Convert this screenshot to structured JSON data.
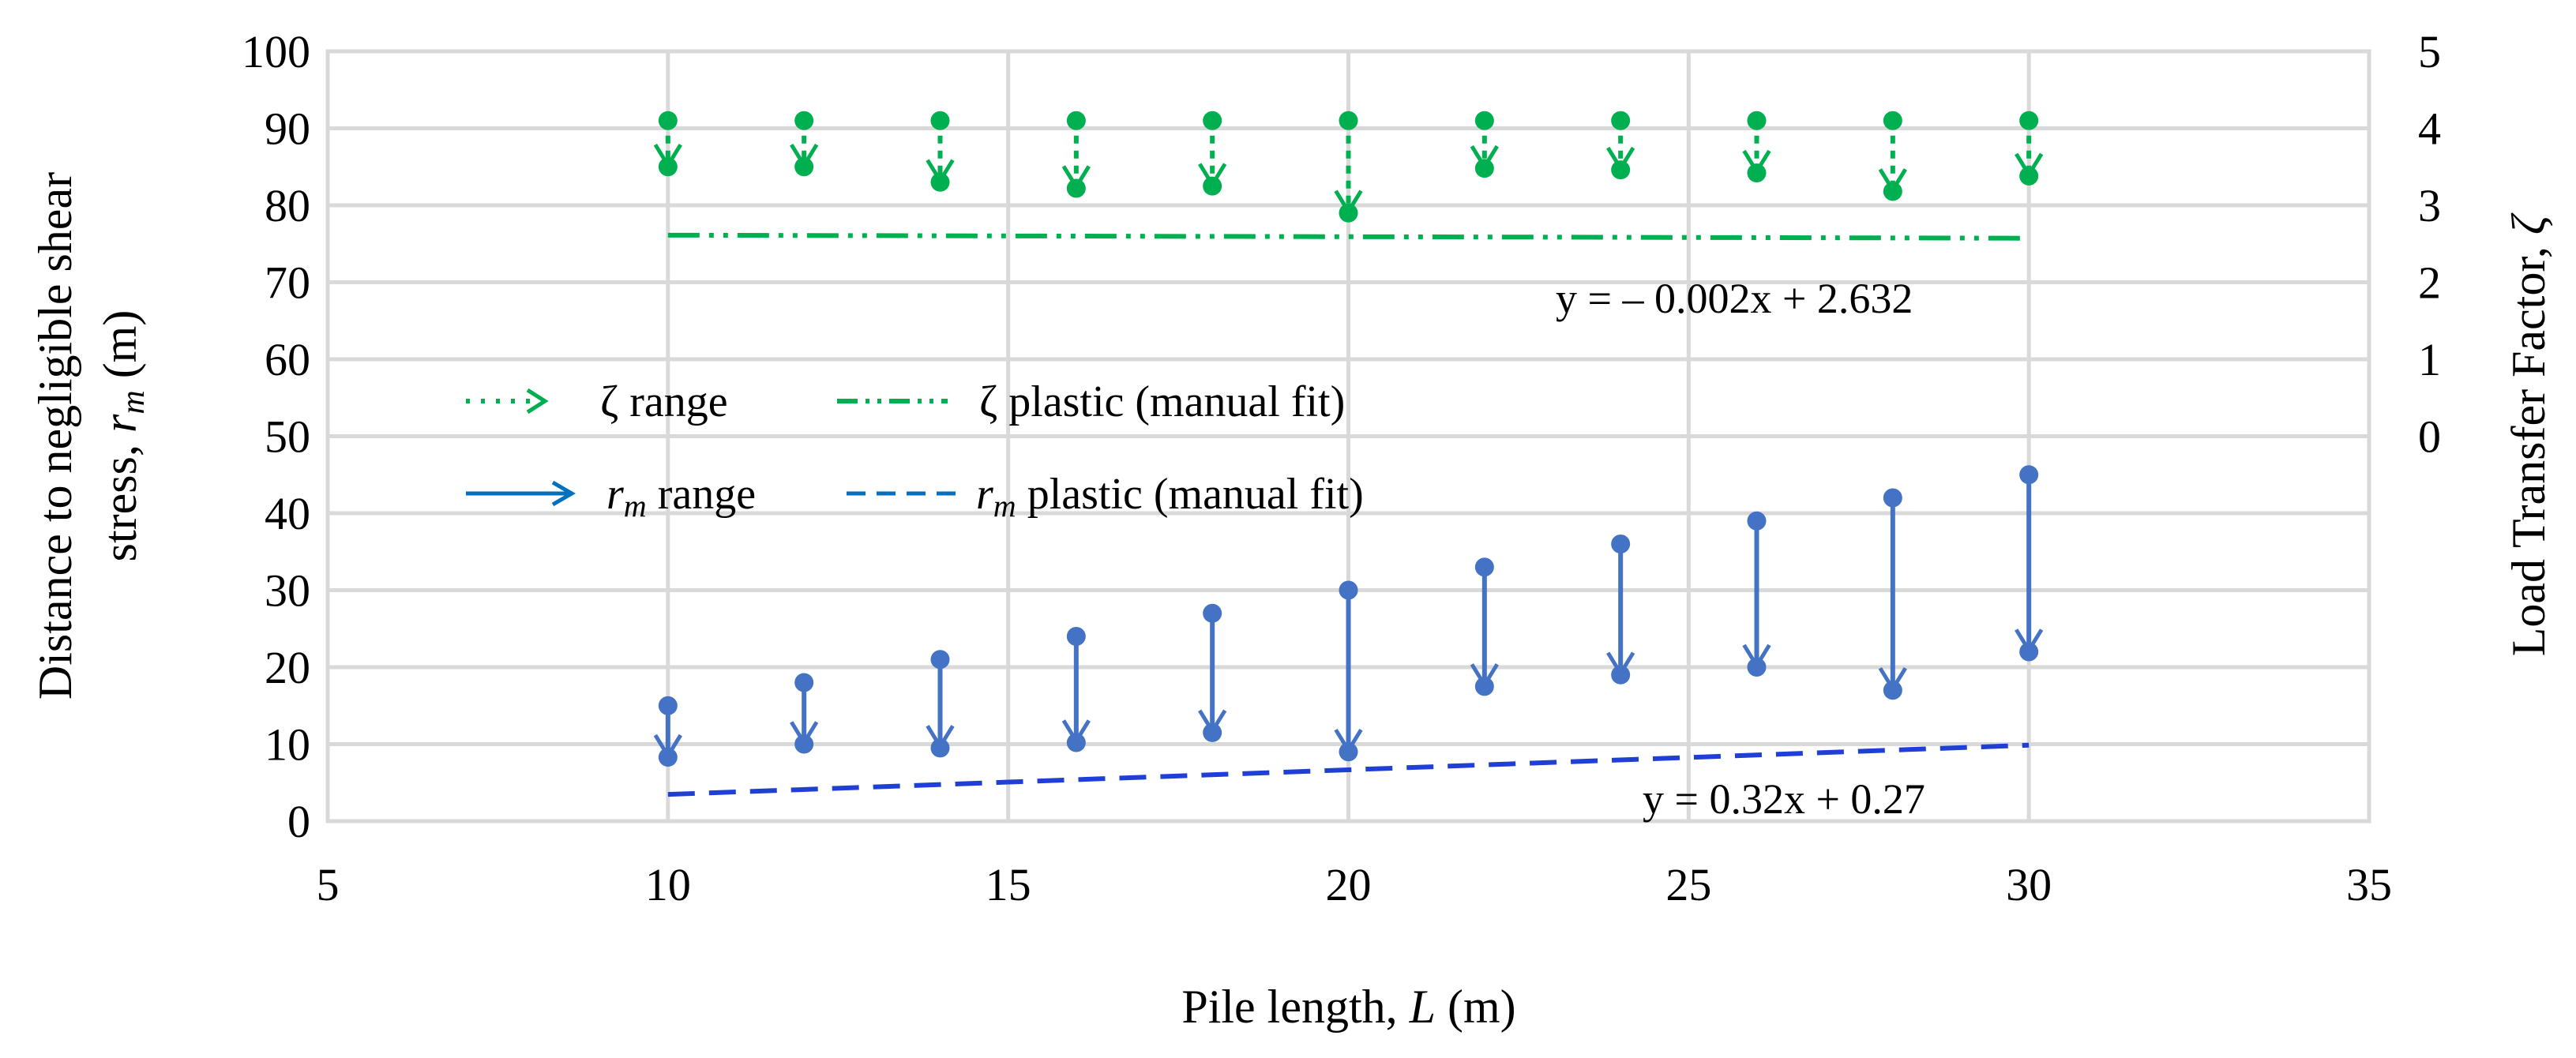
{
  "chart_data": {
    "type": "scatter",
    "x_axis": {
      "title": "Pile length, ",
      "title_var": "L",
      "title_unit": " (m)",
      "range": [
        5,
        35
      ],
      "ticks": [
        5,
        10,
        15,
        20,
        25,
        30,
        35
      ]
    },
    "y_axis_left": {
      "title_line1": "Distance to negligible shear",
      "title_line2": "stress, ",
      "title_var": "r",
      "title_sub": "m",
      "title_unit": " (m)",
      "range": [
        0,
        100
      ],
      "ticks": [
        0,
        10,
        20,
        30,
        40,
        50,
        60,
        70,
        80,
        90,
        100
      ]
    },
    "y_axis_right": {
      "title": "Load Transfer Factor, ",
      "title_var": "ζ",
      "range": [
        -5,
        5
      ],
      "ticks": [
        0,
        1,
        2,
        3,
        4,
        5
      ]
    },
    "series": [
      {
        "name": "ζ range",
        "color": "#00b050",
        "axis": "right",
        "x": [
          10,
          12,
          14,
          16,
          18,
          20,
          22,
          24,
          26,
          28,
          30
        ],
        "start": [
          4.1,
          4.1,
          4.1,
          4.1,
          4.1,
          4.1,
          4.1,
          4.1,
          4.1,
          4.1,
          4.1
        ],
        "end": [
          3.5,
          3.5,
          3.3,
          3.22,
          3.25,
          2.9,
          3.48,
          3.46,
          3.42,
          3.18,
          3.38
        ]
      },
      {
        "name": "ζ  plastic (manual fit)",
        "color": "#00b050",
        "axis": "right",
        "x": [
          10,
          30
        ],
        "y": [
          2.612,
          2.572
        ],
        "equation": "y = – 0.002x + 2.632"
      },
      {
        "name_var": "r",
        "name_sub": "m",
        "name": " range",
        "color": "#4472c4",
        "axis": "left",
        "x": [
          10,
          12,
          14,
          16,
          18,
          20,
          22,
          24,
          26,
          28,
          30
        ],
        "start": [
          15,
          18,
          21,
          24,
          27,
          30,
          33,
          36,
          39,
          42,
          45
        ],
        "end": [
          8.3,
          10,
          9.5,
          10.2,
          11.5,
          9,
          17.5,
          19,
          20,
          17,
          22
        ]
      },
      {
        "name_var": "r",
        "name_sub": "m",
        "name": " plastic (manual fit)",
        "color": "#1f3fd6",
        "axis": "left",
        "x": [
          10,
          30
        ],
        "y": [
          3.47,
          9.87
        ],
        "equation": "y = 0.32x + 0.27"
      }
    ]
  },
  "colors": {
    "zeta_green": "#00b050",
    "rm_blue": "#4472c4",
    "fit_blue": "#1f3fd6",
    "grid": "#d9d9d9"
  }
}
